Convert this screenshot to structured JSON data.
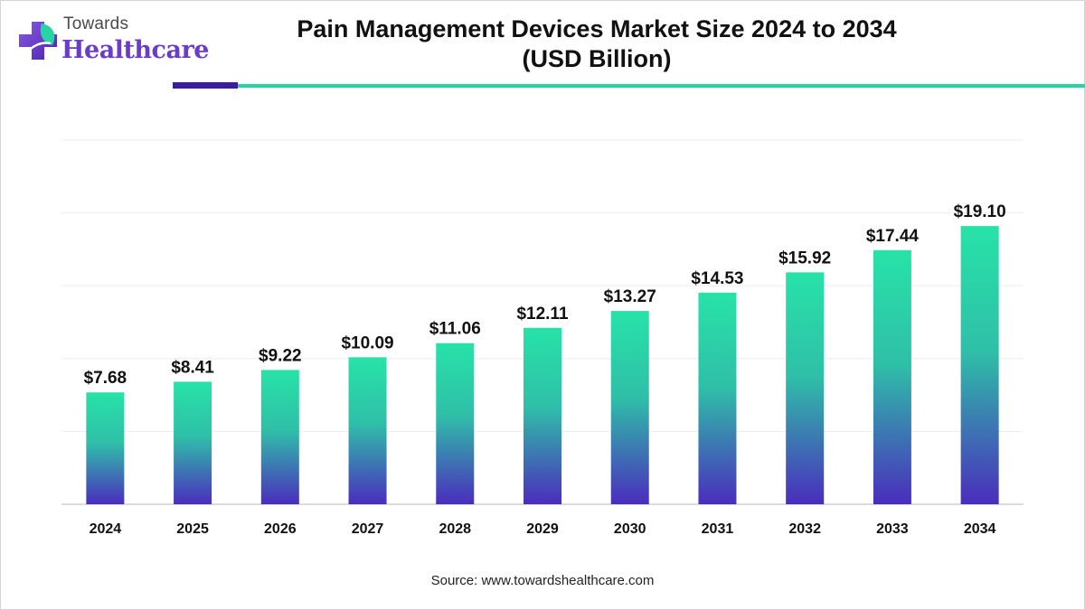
{
  "brand": {
    "line1": "Towards",
    "line2": "Healthcare",
    "accent_color": "#6a3cc9",
    "teal_color": "#27d4a4",
    "navy_color": "#3a1d9e",
    "icon": "plus-leaf-icon"
  },
  "source": "Source: www.towardshealthcare.com",
  "chart_data": {
    "type": "bar",
    "title": "Pain Management Devices Market Size 2024 to 2034 (USD Billion)",
    "title_line1": "Pain Management Devices Market Size 2024 to 2034",
    "title_line2": "(USD Billion)",
    "xlabel": "",
    "ylabel": "",
    "categories": [
      "2024",
      "2025",
      "2026",
      "2027",
      "2028",
      "2029",
      "2030",
      "2031",
      "2032",
      "2033",
      "2034"
    ],
    "values": [
      7.68,
      8.41,
      9.22,
      10.09,
      11.06,
      12.11,
      13.27,
      14.53,
      15.92,
      17.44,
      19.1
    ],
    "value_labels": [
      "$7.68",
      "$8.41",
      "$9.22",
      "$10.09",
      "$11.06",
      "$12.11",
      "$13.27",
      "$14.53",
      "$15.92",
      "$17.44",
      "$19.10"
    ],
    "ylim": [
      0,
      25
    ],
    "grid": true,
    "legend": "none",
    "bar_gradient": {
      "top": "#27e3a8",
      "bottom": "#4a2dbd"
    }
  }
}
